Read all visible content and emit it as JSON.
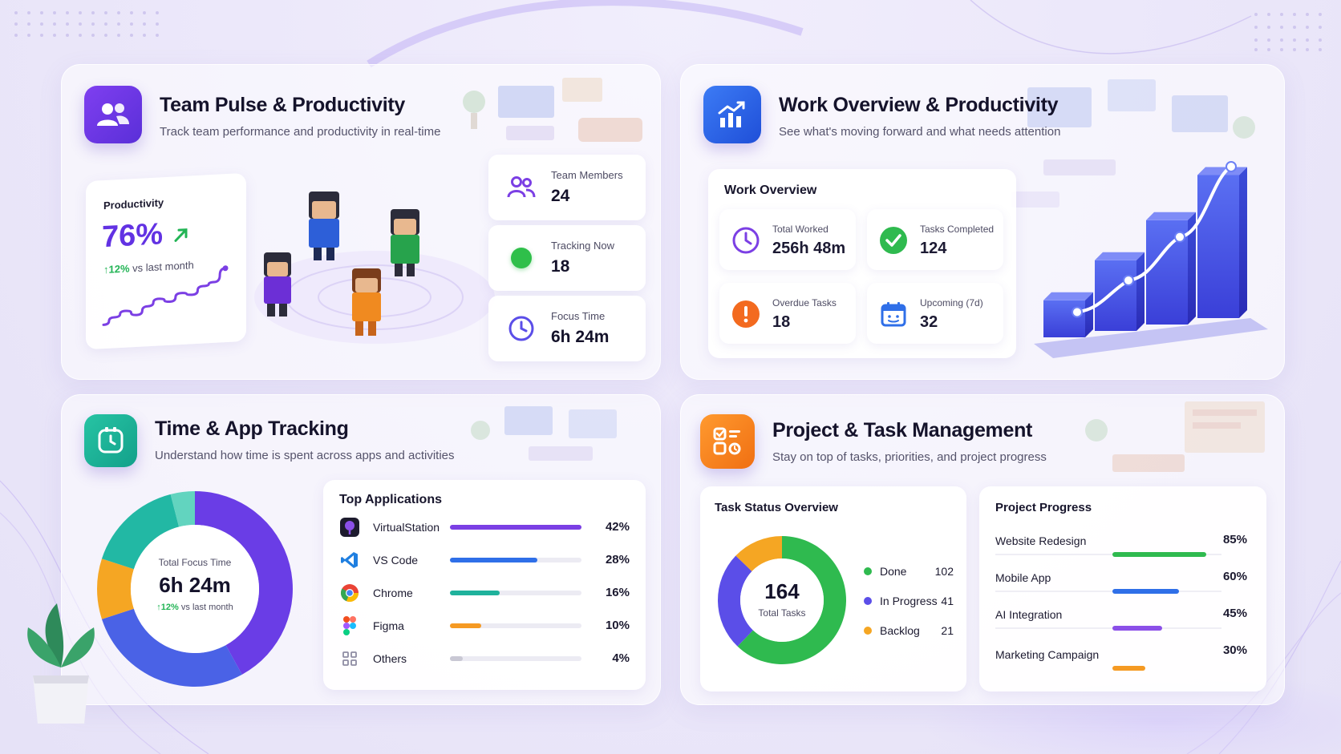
{
  "team_pulse": {
    "title": "Team Pulse & Productivity",
    "subtitle": "Track team performance and productivity in real-time",
    "productivity": {
      "label": "Productivity",
      "value": "76%",
      "change": "12%",
      "change_suffix": "vs last month",
      "trend": [
        0.08,
        0.2,
        0.3,
        0.22,
        0.36,
        0.48,
        0.42,
        0.56,
        0.52,
        0.66,
        0.72,
        0.95
      ]
    },
    "stats": [
      {
        "label": "Team Members",
        "value": "24",
        "icon": "team-icon"
      },
      {
        "label": "Tracking Now",
        "value": "18",
        "icon": "status-dot-icon"
      },
      {
        "label": "Focus Time",
        "value": "6h 24m",
        "icon": "clock-icon"
      }
    ]
  },
  "work_overview": {
    "title": "Work Overview & Productivity",
    "subtitle": "See what's moving forward and what needs attention",
    "card_title": "Work Overview",
    "items": [
      {
        "label": "Total Worked",
        "value": "256h 48m",
        "icon": "clock-icon"
      },
      {
        "label": "Tasks Completed",
        "value": "124",
        "icon": "check-circle-icon"
      },
      {
        "label": "Overdue Tasks",
        "value": "18",
        "icon": "alert-icon"
      },
      {
        "label": "Upcoming (7d)",
        "value": "32",
        "icon": "calendar-icon"
      }
    ],
    "bar_levels": [
      0.22,
      0.42,
      0.62,
      0.85
    ],
    "line_levels": [
      0.15,
      0.3,
      0.52,
      0.9
    ]
  },
  "time_tracking": {
    "title": "Time & App Tracking",
    "subtitle": "Understand how time is spent across apps and activities",
    "donut": {
      "label": "Total Focus Time",
      "value": "6h 24m",
      "change": "12%",
      "change_suffix": "vs last month"
    },
    "apps_title": "Top Applications",
    "apps": [
      {
        "name": "VirtualStation",
        "percent": 42,
        "percent_label": "42%",
        "color": "#7b3fe4",
        "icon": "virtualstation-icon"
      },
      {
        "name": "VS Code",
        "percent": 28,
        "percent_label": "28%",
        "color": "#2f6fe8",
        "icon": "vscode-icon"
      },
      {
        "name": "Chrome",
        "percent": 16,
        "percent_label": "16%",
        "color": "#1fb29c",
        "icon": "chrome-icon"
      },
      {
        "name": "Figma",
        "percent": 10,
        "percent_label": "10%",
        "color": "#f59a23",
        "icon": "figma-icon"
      },
      {
        "name": "Others",
        "percent": 4,
        "percent_label": "4%",
        "color": "#c9c8d4",
        "icon": "grid-icon"
      }
    ]
  },
  "project_mgmt": {
    "title": "Project & Task Management",
    "subtitle": "Stay on top of tasks, priorities, and project progress",
    "task_status": {
      "title": "Task Status Overview",
      "total": "164",
      "total_label": "Total Tasks",
      "items": [
        {
          "name": "Done",
          "value": 102,
          "value_label": "102",
          "color": "#2fba4f"
        },
        {
          "name": "In Progress",
          "value": 41,
          "value_label": "41",
          "color": "#5b4ee8"
        },
        {
          "name": "Backlog",
          "value": 21,
          "value_label": "21",
          "color": "#f5a623"
        }
      ]
    },
    "project_progress": {
      "title": "Project Progress",
      "items": [
        {
          "name": "Website Redesign",
          "percent": 85,
          "percent_label": "85%",
          "color": "#2fba4f"
        },
        {
          "name": "Mobile App",
          "percent": 60,
          "percent_label": "60%",
          "color": "#2f6fe8"
        },
        {
          "name": "AI Integration",
          "percent": 45,
          "percent_label": "45%",
          "color": "#8b4fe8"
        },
        {
          "name": "Marketing Campaign",
          "percent": 30,
          "percent_label": "30%",
          "color": "#f59a23"
        }
      ]
    }
  },
  "colors": {
    "purple": "#6d3ee8",
    "blue": "#2f6fe8",
    "teal": "#1fb29c",
    "orange": "#f5871f",
    "green": "#22b455"
  }
}
